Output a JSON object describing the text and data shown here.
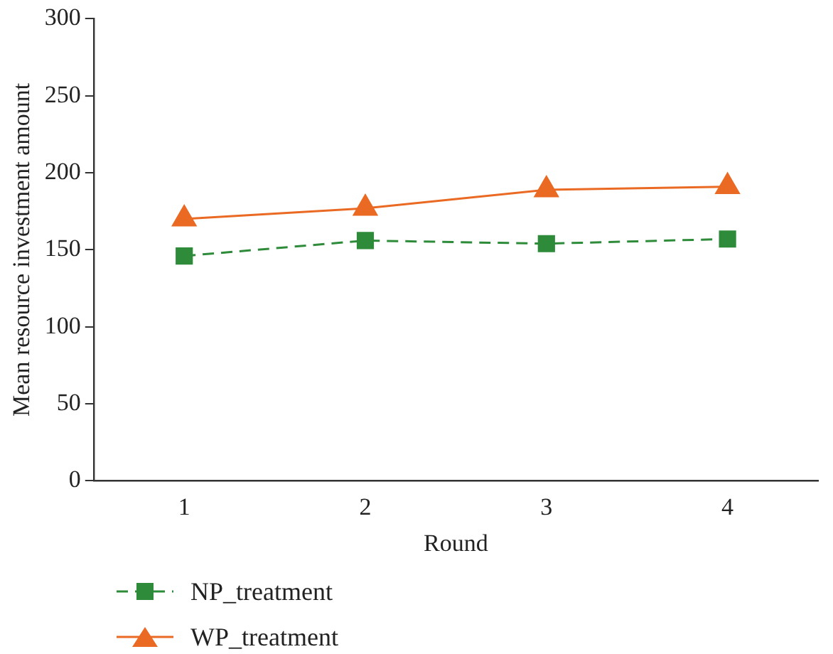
{
  "chart_data": {
    "type": "line",
    "xlabel": "Round",
    "ylabel": "Mean resource investment amount",
    "categories": [
      "1",
      "2",
      "3",
      "4"
    ],
    "series": [
      {
        "name": "NP_treatment",
        "color": "#2e8b3a",
        "values": [
          146,
          156,
          154,
          157
        ],
        "marker": "square",
        "line_style": "dashed"
      },
      {
        "name": "WP_treatment",
        "color": "#ea6a24",
        "values": [
          170,
          177,
          189,
          191
        ],
        "marker": "triangle",
        "line_style": "solid"
      }
    ],
    "ylim": [
      0,
      300
    ],
    "yticks": [
      0,
      50,
      100,
      150,
      200,
      250,
      300
    ],
    "grid": false,
    "legend": "bottom"
  }
}
